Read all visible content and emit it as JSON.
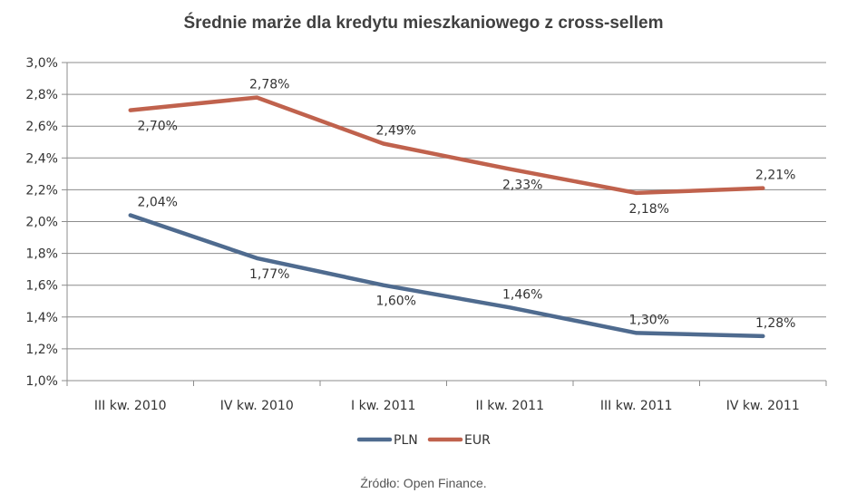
{
  "chart_data": {
    "type": "line",
    "title": "Średnie marże dla kredytu mieszkaniowego z cross-sellem",
    "categories": [
      "III kw. 2010",
      "IV kw. 2010",
      "I kw. 2011",
      "II kw. 2011",
      "III kw. 2011",
      "IV kw. 2011"
    ],
    "series": [
      {
        "name": "PLN",
        "color": "#4f6b8f",
        "values": [
          2.04,
          1.77,
          1.6,
          1.46,
          1.3,
          1.28
        ],
        "labels": [
          "2,04%",
          "1,77%",
          "1,60%",
          "1,46%",
          "1,30%",
          "1,28%"
        ]
      },
      {
        "name": "EUR",
        "color": "#c0624d",
        "values": [
          2.7,
          2.78,
          2.49,
          2.33,
          2.18,
          2.21
        ],
        "labels": [
          "2,70%",
          "2,78%",
          "2,49%",
          "2,33%",
          "2,18%",
          "2,21%"
        ]
      }
    ],
    "ylim": [
      1.0,
      3.0
    ],
    "yticks": [
      1.0,
      1.2,
      1.4,
      1.6,
      1.8,
      2.0,
      2.2,
      2.4,
      2.6,
      2.8,
      3.0
    ],
    "ytick_labels": [
      "1,0%",
      "1,2%",
      "1,4%",
      "1,6%",
      "1,8%",
      "2,0%",
      "2,2%",
      "2,4%",
      "2,6%",
      "2,8%",
      "3,0%"
    ],
    "grid": true,
    "legend_position": "bottom",
    "source": "Źródło: Open Finance."
  }
}
